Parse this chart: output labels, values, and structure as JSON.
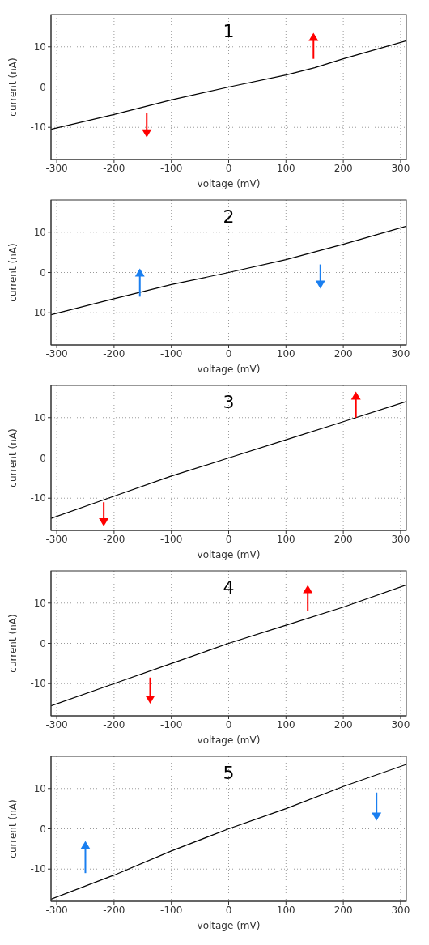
{
  "chart_data": [
    {
      "type": "line",
      "title": "1",
      "xlabel": "voltage (mV)",
      "ylabel": "current (nA)",
      "x": [
        -310,
        -200,
        -100,
        0,
        100,
        150,
        200,
        310
      ],
      "series": [
        {
          "color": "#000000",
          "values": [
            -10.5,
            -6.8,
            -3.2,
            0,
            3,
            4.8,
            7,
            11.5
          ]
        }
      ],
      "xlim": [
        -310,
        310
      ],
      "ylim": [
        -18,
        18
      ],
      "xticks": [
        -300,
        -200,
        -100,
        0,
        100,
        200,
        300
      ],
      "yticks": [
        -10,
        0,
        10
      ],
      "grid": true,
      "marker": "none"
    },
    {
      "type": "line",
      "title": "2",
      "xlabel": "voltage (mV)",
      "ylabel": "current (nA)",
      "x": [
        -310,
        -200,
        -100,
        0,
        100,
        200,
        310
      ],
      "series": [
        {
          "color": "#000000",
          "values": [
            -10.5,
            -6.5,
            -3,
            0,
            3.2,
            7,
            11.5
          ]
        }
      ],
      "xlim": [
        -310,
        310
      ],
      "ylim": [
        -18,
        18
      ],
      "xticks": [
        -300,
        -200,
        -100,
        0,
        100,
        200,
        300
      ],
      "yticks": [
        -10,
        0,
        10
      ],
      "grid": true,
      "marker": "none"
    },
    {
      "type": "line",
      "title": "3",
      "xlabel": "voltage (mV)",
      "ylabel": "current (nA)",
      "x": [
        -310,
        -200,
        -100,
        0,
        100,
        200,
        310
      ],
      "series": [
        {
          "color": "#000000",
          "values": [
            -15,
            -9.5,
            -4.5,
            0,
            4.5,
            9,
            14
          ]
        }
      ],
      "xlim": [
        -310,
        310
      ],
      "ylim": [
        -18,
        18
      ],
      "xticks": [
        -300,
        -200,
        -100,
        0,
        100,
        200,
        300
      ],
      "yticks": [
        -10,
        0,
        10
      ],
      "grid": true,
      "marker": "none"
    },
    {
      "type": "line",
      "title": "4",
      "xlabel": "voltage (mV)",
      "ylabel": "current (nA)",
      "x": [
        -310,
        -200,
        -100,
        0,
        100,
        200,
        310
      ],
      "series": [
        {
          "color": "#000000",
          "values": [
            -15.5,
            -10,
            -5,
            0,
            4.5,
            9,
            14.5
          ]
        }
      ],
      "xlim": [
        -310,
        310
      ],
      "ylim": [
        -18,
        18
      ],
      "xticks": [
        -300,
        -200,
        -100,
        0,
        100,
        200,
        300
      ],
      "yticks": [
        -10,
        0,
        10
      ],
      "grid": true,
      "marker": "none"
    },
    {
      "type": "line",
      "title": "5",
      "xlabel": "voltage (mV)",
      "ylabel": "current (nA)",
      "x": [
        -310,
        -200,
        -100,
        0,
        100,
        200,
        310
      ],
      "series": [
        {
          "color": "#000000",
          "values": [
            -17.5,
            -11.5,
            -5.5,
            0,
            5,
            10.5,
            16
          ]
        }
      ],
      "xlim": [
        -310,
        310
      ],
      "ylim": [
        -18,
        18
      ],
      "xticks": [
        -300,
        -200,
        -100,
        0,
        100,
        200,
        300
      ],
      "yticks": [
        -10,
        0,
        10
      ],
      "grid": true,
      "marker": "none"
    }
  ]
}
